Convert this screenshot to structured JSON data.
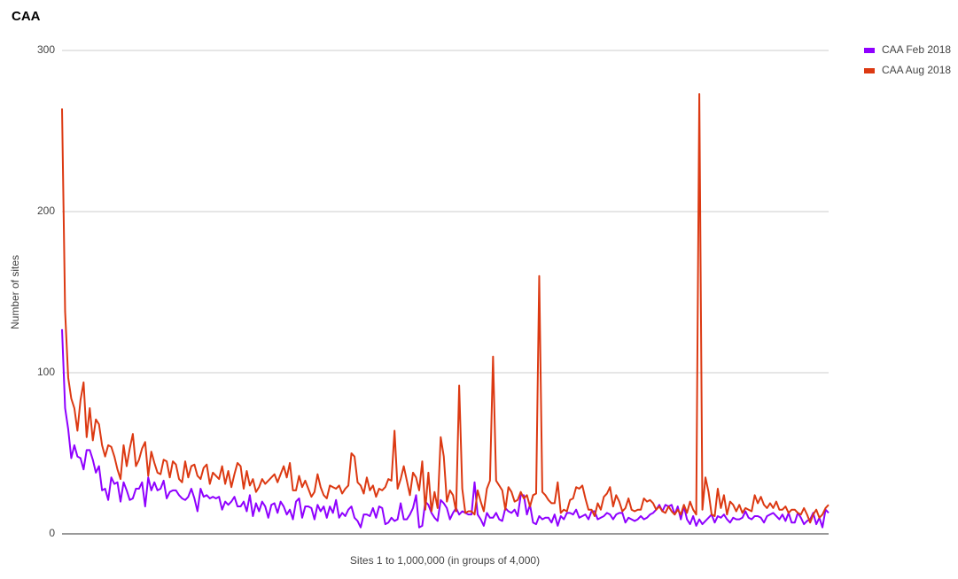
{
  "chart_data": {
    "type": "line",
    "title": "CAA",
    "x_label": "Sites 1 to 1,000,000 (in groups of 4,000)",
    "y_label": "Number of sites",
    "ylim": [
      0,
      300
    ],
    "yticks": [
      0,
      100,
      200,
      300
    ],
    "grid": true,
    "legend": "right",
    "categories": [
      null,
      null,
      null,
      null,
      null,
      null,
      null,
      null,
      null,
      null,
      null,
      null,
      null,
      null,
      null,
      null,
      null,
      null,
      null,
      null,
      null,
      null,
      null,
      null,
      null,
      null,
      null,
      null,
      null,
      null,
      null,
      null,
      null,
      null,
      null,
      null,
      null,
      null,
      null,
      null,
      null,
      null,
      null,
      null,
      null,
      null,
      null,
      null,
      null,
      null,
      null,
      null,
      null,
      null,
      null,
      null,
      null,
      null,
      null,
      null,
      null,
      null,
      null,
      null,
      null,
      null,
      null,
      null,
      null,
      null,
      null,
      null,
      null,
      null,
      null,
      null,
      null,
      null,
      null,
      null,
      null,
      null,
      null,
      null,
      null,
      null,
      null,
      null,
      null,
      null,
      null,
      null,
      null,
      null,
      null,
      null,
      null,
      null,
      null,
      null,
      null,
      null,
      null,
      null,
      null,
      null,
      null,
      null,
      null,
      null,
      null,
      null,
      null,
      null,
      null,
      null,
      null,
      null,
      null,
      null,
      null,
      null,
      null,
      null,
      null,
      null,
      null,
      null,
      null,
      null,
      null,
      null,
      null,
      null,
      null,
      null,
      null,
      null,
      null,
      null,
      null,
      null,
      null,
      null,
      null,
      null,
      null,
      null,
      null,
      null,
      null,
      null,
      null,
      null,
      null,
      null,
      null,
      null,
      null,
      null,
      null,
      null,
      null,
      null,
      null,
      null,
      null,
      null,
      null,
      null,
      null,
      null,
      null,
      null,
      null,
      null,
      null,
      null,
      null,
      null,
      null,
      null,
      null,
      null,
      null,
      null,
      null,
      null,
      null,
      null,
      null,
      null,
      null,
      null,
      null,
      null,
      null,
      null,
      null,
      null,
      null,
      null,
      null,
      null,
      null,
      null,
      null,
      null,
      null,
      null,
      null,
      null,
      null,
      null,
      null,
      null,
      null,
      null,
      null,
      null,
      null,
      null,
      null,
      null,
      null,
      null,
      null,
      null,
      null,
      null,
      null,
      null,
      null,
      null,
      null,
      null,
      null,
      null,
      null,
      null,
      null,
      null,
      null,
      null,
      null,
      null,
      null,
      null,
      null,
      null
    ],
    "series": [
      {
        "name": "CAA Feb 2018",
        "color": "#8f00ff",
        "values": [
          127,
          78,
          65,
          47,
          55,
          48,
          47,
          40,
          52,
          52,
          46,
          38,
          42,
          27,
          28,
          21,
          35,
          31,
          32,
          20,
          32,
          27,
          21,
          22,
          28,
          28,
          32,
          17,
          35,
          27,
          32,
          27,
          28,
          33,
          22,
          26,
          27,
          27,
          24,
          22,
          21,
          23,
          28,
          22,
          14,
          28,
          23,
          24,
          22,
          23,
          22,
          23,
          15,
          20,
          18,
          20,
          23,
          17,
          17,
          20,
          14,
          24,
          11,
          19,
          14,
          20,
          17,
          10,
          18,
          19,
          13,
          20,
          17,
          12,
          15,
          9,
          20,
          22,
          10,
          17,
          17,
          16,
          9,
          18,
          14,
          17,
          10,
          17,
          13,
          21,
          10,
          13,
          11,
          15,
          17,
          10,
          8,
          4,
          12,
          12,
          11,
          16,
          10,
          17,
          16,
          6,
          7,
          10,
          8,
          9,
          19,
          9,
          9,
          12,
          16,
          24,
          4,
          5,
          20,
          18,
          13,
          10,
          8,
          21,
          19,
          16,
          9,
          13,
          16,
          12,
          14,
          13,
          12,
          12,
          32,
          12,
          9,
          5,
          13,
          10,
          10,
          13,
          9,
          8,
          16,
          14,
          13,
          15,
          11,
          24,
          24,
          12,
          18,
          7,
          6,
          11,
          9,
          10,
          10,
          7,
          12,
          5,
          11,
          9,
          13,
          13,
          12,
          15,
          10,
          11,
          12,
          9,
          14,
          14,
          9,
          10,
          11,
          13,
          12,
          9,
          12,
          13,
          13,
          7,
          10,
          9,
          8,
          9,
          11,
          9,
          10,
          12,
          13,
          15,
          18,
          14,
          18,
          17,
          18,
          12,
          17,
          9,
          17,
          9,
          6,
          11,
          5,
          9,
          6,
          8,
          10,
          12,
          7,
          11,
          10,
          12,
          9,
          7,
          10,
          9,
          9,
          10,
          14,
          10,
          9,
          11,
          11,
          10,
          7,
          11,
          12,
          13,
          11,
          9,
          12,
          8,
          13,
          7,
          7,
          13,
          10,
          6,
          8,
          9,
          13,
          6,
          10,
          4,
          15,
          13
        ]
      },
      {
        "name": "CAA Aug 2018",
        "color": "#dc3912",
        "values": [
          264,
          138,
          97,
          84,
          78,
          64,
          83,
          94,
          60,
          78,
          58,
          71,
          68,
          55,
          48,
          55,
          54,
          48,
          40,
          34,
          55,
          42,
          53,
          62,
          42,
          46,
          53,
          57,
          36,
          51,
          44,
          38,
          37,
          46,
          45,
          35,
          45,
          43,
          34,
          32,
          45,
          35,
          42,
          43,
          36,
          34,
          41,
          43,
          31,
          38,
          36,
          34,
          42,
          31,
          39,
          29,
          37,
          44,
          42,
          28,
          39,
          30,
          34,
          26,
          29,
          34,
          31,
          33,
          35,
          37,
          32,
          37,
          42,
          35,
          44,
          27,
          27,
          36,
          29,
          33,
          28,
          23,
          26,
          37,
          29,
          24,
          22,
          30,
          29,
          28,
          30,
          25,
          28,
          30,
          50,
          48,
          32,
          30,
          25,
          35,
          27,
          30,
          23,
          28,
          27,
          29,
          34,
          33,
          64,
          28,
          34,
          42,
          33,
          24,
          38,
          35,
          27,
          45,
          15,
          38,
          14,
          26,
          16,
          60,
          48,
          20,
          27,
          24,
          14,
          92,
          28,
          13,
          14,
          14,
          12,
          27,
          20,
          14,
          28,
          33,
          110,
          33,
          30,
          27,
          15,
          29,
          26,
          20,
          21,
          26,
          22,
          24,
          17,
          24,
          25,
          160,
          26,
          24,
          21,
          19,
          19,
          32,
          13,
          15,
          14,
          21,
          22,
          29,
          28,
          30,
          22,
          15,
          15,
          11,
          19,
          15,
          23,
          25,
          29,
          17,
          24,
          20,
          14,
          16,
          22,
          15,
          14,
          15,
          15,
          22,
          20,
          21,
          19,
          15,
          17,
          14,
          13,
          17,
          14,
          12,
          15,
          12,
          18,
          13,
          20,
          15,
          12,
          273,
          15,
          35,
          26,
          12,
          11,
          28,
          16,
          24,
          12,
          20,
          18,
          14,
          18,
          13,
          16,
          15,
          14,
          24,
          19,
          23,
          18,
          16,
          19,
          16,
          20,
          15,
          15,
          17,
          13,
          15,
          15,
          13,
          12,
          16,
          12,
          7,
          12,
          15,
          10,
          12,
          16,
          18
        ]
      }
    ]
  }
}
